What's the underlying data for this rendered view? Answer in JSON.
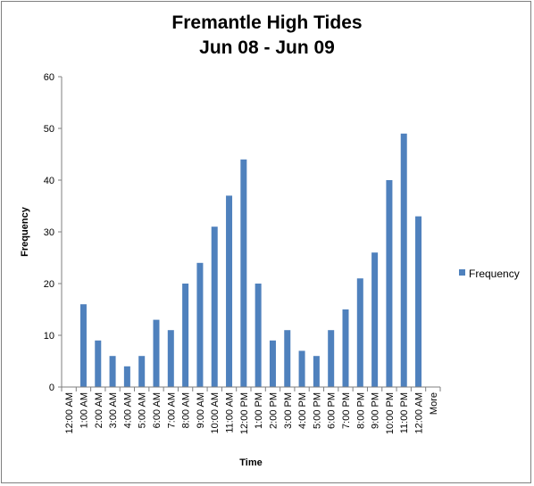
{
  "chart_data": {
    "type": "bar",
    "title": "Fremantle High Tides",
    "subtitle": "Jun 08 - Jun 09",
    "xlabel": "Time",
    "ylabel": "Frequency",
    "ylim": [
      0,
      60
    ],
    "yticks": [
      0,
      10,
      20,
      30,
      40,
      50,
      60
    ],
    "grid": false,
    "legend_position": "right",
    "categories": [
      "12:00 AM",
      "1:00 AM",
      "2:00 AM",
      "3:00 AM",
      "4:00 AM",
      "5:00 AM",
      "6:00 AM",
      "7:00 AM",
      "8:00 AM",
      "9:00 AM",
      "10:00 AM",
      "11:00 AM",
      "12:00 PM",
      "1:00 PM",
      "2:00 PM",
      "3:00 PM",
      "4:00 PM",
      "5:00 PM",
      "6:00 PM",
      "7:00 PM",
      "8:00 PM",
      "9:00 PM",
      "10:00 PM",
      "11:00 PM",
      "12:00 AM",
      "More"
    ],
    "series": [
      {
        "name": "Frequency",
        "color": "#4f81bd",
        "values": [
          0,
          16,
          9,
          6,
          4,
          6,
          13,
          11,
          20,
          24,
          31,
          37,
          44,
          20,
          9,
          11,
          7,
          6,
          11,
          15,
          21,
          26,
          40,
          49,
          33,
          0
        ]
      }
    ]
  }
}
